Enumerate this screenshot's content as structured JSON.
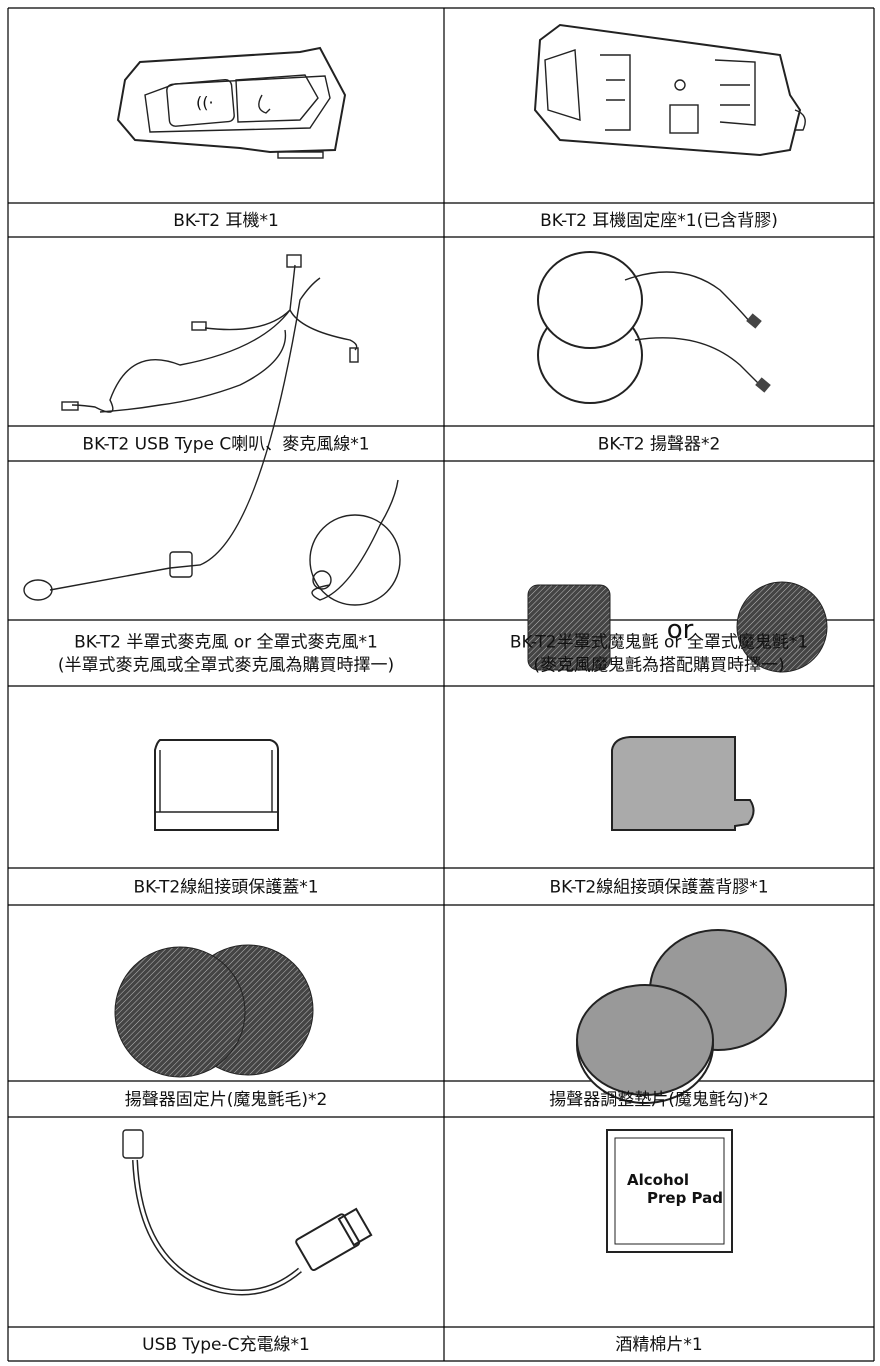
{
  "rows": [
    [
      [
        "BK-T2 耳機*1"
      ],
      [
        "BK-T2 耳機固定座*1(已含背膠)"
      ]
    ],
    [
      [
        "BK-T2 USB Type C喇叭、麥克風線*1"
      ],
      [
        "BK-T2 揚聲器*2"
      ]
    ],
    [
      [
        "BK-T2 半罩式麥克風 or 全罩式麥克風*1",
        "(半罩式麥克風或全罩式麥克風為購買時擇一)"
      ],
      [
        "BK-T2半罩式魔鬼氈 or 全罩式魔鬼氈*1",
        "(麥克風魔鬼氈為搭配購買時擇一)"
      ]
    ],
    [
      [
        "BK-T2線組接頭保護蓋*1"
      ],
      [
        "BK-T2線組接頭保護蓋背膠*1"
      ]
    ],
    [
      [
        "揚聲器固定片(魔鬼氈毛)*2"
      ],
      [
        "揚聲器調整墊片(魔鬼氈勾)*2"
      ]
    ],
    [
      [
        "USB Type-C充電線*1"
      ],
      [
        "酒精棉片*1"
      ]
    ]
  ],
  "figure_texts": {
    "or": "or",
    "alcohol": [
      "Alcohol",
      "Prep Pad"
    ]
  }
}
